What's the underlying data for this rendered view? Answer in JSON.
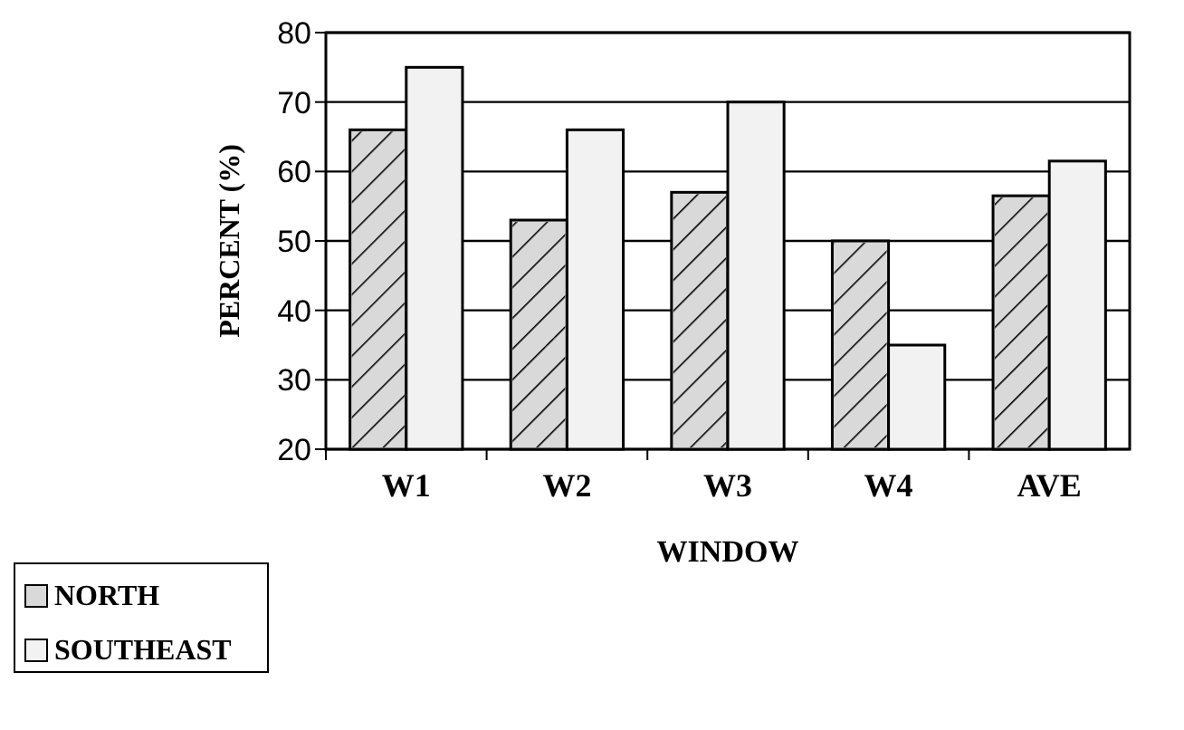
{
  "chart_data": {
    "type": "bar",
    "xlabel": "WINDOW",
    "ylabel": "PERCENT (%)",
    "categories": [
      "W1",
      "W2",
      "W3",
      "W4",
      "AVE"
    ],
    "series": [
      {
        "name": "NORTH",
        "color": "#d9d9d9",
        "values": [
          66,
          53,
          57,
          50,
          56.5
        ]
      },
      {
        "name": "SOUTHEAST",
        "color": "#f2f2f2",
        "values": [
          75,
          66,
          70,
          35,
          61.5
        ]
      }
    ],
    "ylim": [
      20,
      80
    ],
    "yticks": [
      20,
      30,
      40,
      50,
      60,
      70,
      80
    ],
    "grid": "y",
    "legend": "bottom left"
  }
}
